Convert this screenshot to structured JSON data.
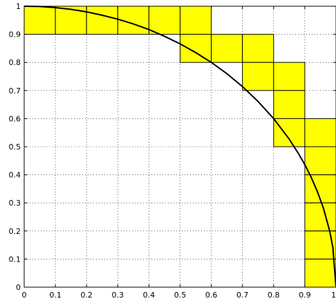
{
  "chart_data": {
    "type": "line",
    "title": "",
    "xlabel": "",
    "ylabel": "",
    "xlim": [
      0,
      1
    ],
    "ylim": [
      0,
      1
    ],
    "grid": true,
    "x_ticks": [
      0,
      0.1,
      0.2,
      0.3,
      0.4,
      0.5,
      0.6,
      0.7,
      0.8,
      0.9,
      1
    ],
    "x_tick_labels": [
      "0",
      "0.1",
      "0.2",
      "0.3",
      "0.4",
      "0.5",
      "0.6",
      "0.7",
      "0.8",
      "0.9",
      "1"
    ],
    "y_ticks": [
      0,
      0.1,
      0.2,
      0.3,
      0.4,
      0.5,
      0.6,
      0.7,
      0.8,
      0.9,
      1
    ],
    "y_tick_labels": [
      "0",
      "0.1",
      "0.2",
      "0.3",
      "0.4",
      "0.5",
      "0.6",
      "0.7",
      "0.8",
      "0.9",
      "1"
    ],
    "cell_size": 0.1,
    "highlighted_cells": [
      {
        "x": 0.0,
        "y": 0.9
      },
      {
        "x": 0.1,
        "y": 0.9
      },
      {
        "x": 0.2,
        "y": 0.9
      },
      {
        "x": 0.3,
        "y": 0.9
      },
      {
        "x": 0.4,
        "y": 0.9
      },
      {
        "x": 0.5,
        "y": 0.9
      },
      {
        "x": 0.5,
        "y": 0.8
      },
      {
        "x": 0.6,
        "y": 0.8
      },
      {
        "x": 0.7,
        "y": 0.8
      },
      {
        "x": 0.7,
        "y": 0.7
      },
      {
        "x": 0.8,
        "y": 0.7
      },
      {
        "x": 0.8,
        "y": 0.6
      },
      {
        "x": 0.8,
        "y": 0.5
      },
      {
        "x": 0.9,
        "y": 0.5
      },
      {
        "x": 0.9,
        "y": 0.4
      },
      {
        "x": 0.9,
        "y": 0.3
      },
      {
        "x": 0.9,
        "y": 0.2
      },
      {
        "x": 0.9,
        "y": 0.1
      },
      {
        "x": 0.9,
        "y": 0.0
      }
    ],
    "series": [
      {
        "x": [
          0.0,
          0.05,
          0.1,
          0.15,
          0.2,
          0.25,
          0.3,
          0.35,
          0.4,
          0.45,
          0.5,
          0.55,
          0.6,
          0.65,
          0.7,
          0.75,
          0.8,
          0.85,
          0.88,
          0.9,
          0.92,
          0.94,
          0.96,
          0.98,
          0.99,
          1.0
        ],
        "y": [
          1.0,
          0.999,
          0.995,
          0.989,
          0.98,
          0.968,
          0.954,
          0.937,
          0.917,
          0.893,
          0.866,
          0.835,
          0.8,
          0.76,
          0.714,
          0.661,
          0.6,
          0.527,
          0.475,
          0.436,
          0.392,
          0.341,
          0.28,
          0.199,
          0.141,
          0.0
        ]
      }
    ],
    "colors": {
      "cell_fill": "#ffff00",
      "cell_stroke": "#000000",
      "curve": "#000000",
      "grid": "#000000",
      "axes": "#000000"
    }
  }
}
